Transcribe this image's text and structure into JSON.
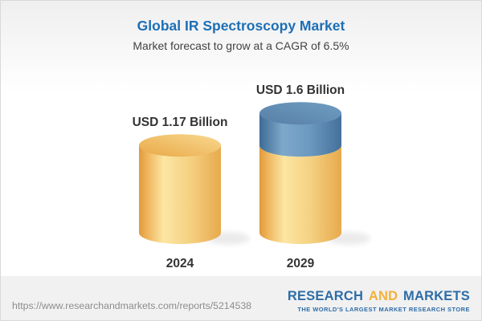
{
  "header": {
    "title": "Global IR Spectroscopy Market",
    "subtitle": "Market forecast to grow at a CAGR of 6.5%"
  },
  "chart_data": {
    "type": "bar",
    "variant": "3d-cylinder",
    "categories": [
      "2024",
      "2029"
    ],
    "values": [
      1.17,
      1.6
    ],
    "unit": "USD Billion",
    "value_labels": [
      "USD 1.17 Billion",
      "USD 1.6 Billion"
    ],
    "cagr_percent": 6.5,
    "xlabel": "",
    "ylabel": "",
    "legend": "none",
    "grid": false,
    "notes": "2029 bar shows 2024 base in gold plus forecast growth segment in blue on top",
    "colors": {
      "bar_base_gold": "#F5CE7E",
      "bar_base_gold_dark": "#E09A3B",
      "bar_growth_blue": "#6C9AC0",
      "bar_growth_blue_dark": "#3C6B95",
      "title_blue": "#1D6FB5",
      "label_dark": "#333333"
    }
  },
  "footer": {
    "url": "https://www.researchandmarkets.com/reports/5214538",
    "logo": {
      "part1": "RESEARCH",
      "part2": "AND",
      "part3": "MARKETS",
      "tagline": "THE WORLD'S LARGEST MARKET RESEARCH STORE"
    }
  }
}
